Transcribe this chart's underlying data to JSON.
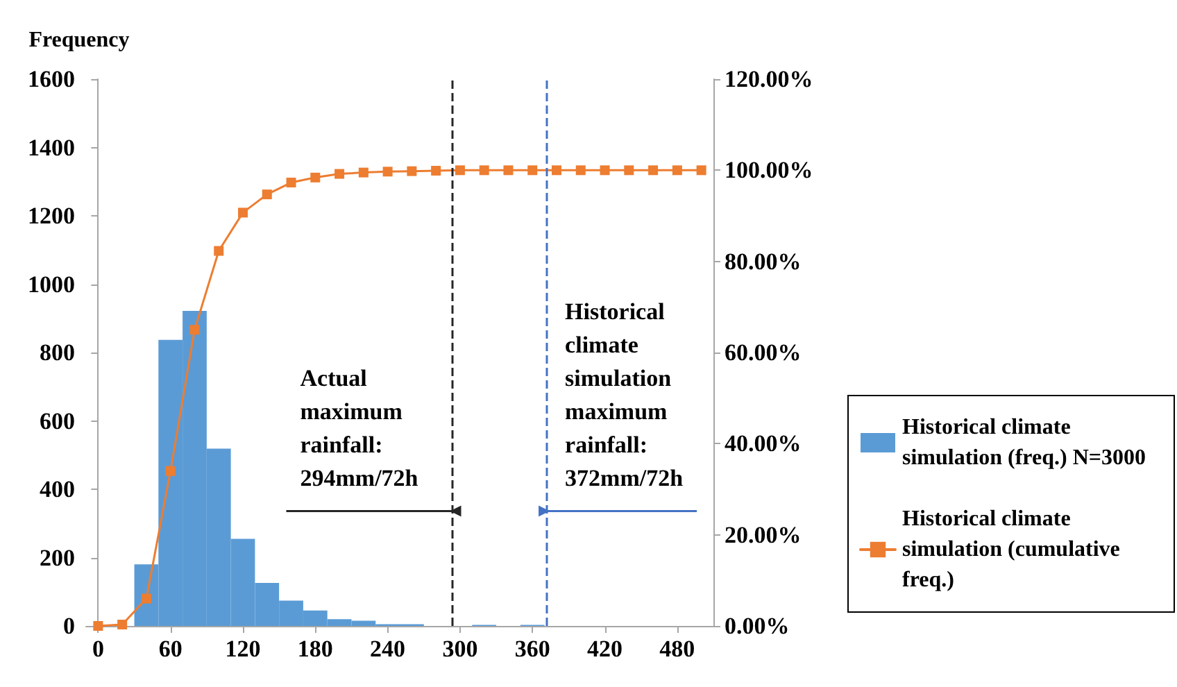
{
  "chart_data": {
    "type": "histogram",
    "ylabel": "Frequency",
    "bins": [
      -10,
      10,
      30,
      50,
      70,
      90,
      110,
      130,
      150,
      170,
      190,
      210,
      230,
      250,
      270,
      290,
      310,
      330,
      350,
      370,
      390,
      410,
      430,
      450,
      470,
      490,
      510
    ],
    "series": [
      {
        "name": "Historical climate simulation (freq.) N=3000",
        "color": "#5b9bd5",
        "values": [
          0,
          0,
          180,
          837,
          922,
          519,
          255,
          126,
          74,
          45,
          20,
          15,
          5,
          5,
          0,
          0,
          3,
          0,
          3,
          0,
          0,
          0,
          0,
          0,
          0,
          0
        ]
      },
      {
        "name": "Historical climate simulation (cumulative freq.)",
        "type": "line",
        "axis": "y2",
        "color": "#ed7d31",
        "marker": "square",
        "x": [
          0,
          20,
          40,
          60,
          80,
          100,
          120,
          140,
          160,
          180,
          200,
          220,
          240,
          260,
          280,
          300,
          320,
          340,
          360,
          380,
          400,
          420,
          440,
          460,
          480,
          500
        ],
        "values": [
          0,
          0.3,
          6,
          34,
          65,
          82.3,
          90.7,
          94.7,
          97.3,
          98.4,
          99.2,
          99.5,
          99.7,
          99.8,
          99.9,
          100,
          100,
          100,
          100,
          100,
          100,
          100,
          100,
          100,
          100,
          100
        ]
      }
    ],
    "xlim": [
      -10,
      510
    ],
    "xticks": [
      0,
      60,
      120,
      180,
      240,
      300,
      360,
      420,
      480
    ],
    "ylim": [
      0,
      1600
    ],
    "yticks": [
      0,
      200,
      400,
      600,
      800,
      1000,
      1200,
      1400,
      1600
    ],
    "y2lim": [
      0,
      120
    ],
    "y2ticks": [
      {
        "value": 0,
        "label": "0.00%"
      },
      {
        "value": 20,
        "label": "20.00%"
      },
      {
        "value": 40,
        "label": "40.00%"
      },
      {
        "value": 60,
        "label": "60.00%"
      },
      {
        "value": 80,
        "label": "80.00%"
      },
      {
        "value": 100,
        "label": "100.00%"
      },
      {
        "value": 120,
        "label": "120.00%"
      }
    ],
    "ref_lines": [
      {
        "axis": "x",
        "value": 294,
        "label": "Actual maximum rainfall: 294mm/72h",
        "color": "#262626",
        "line_style": "dashed"
      },
      {
        "axis": "x",
        "value": 372,
        "label": "Historical climate simulation maximum rainfall: 372mm/72h",
        "color": "#4472c4",
        "line_style": "dashed"
      }
    ],
    "legend": "right"
  }
}
